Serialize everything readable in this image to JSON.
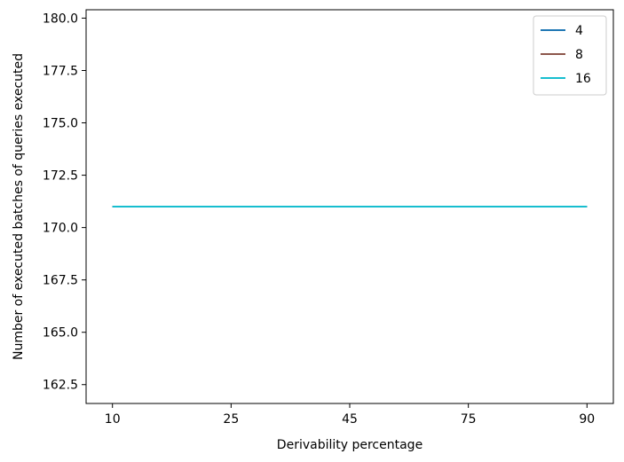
{
  "chart_data": {
    "type": "line",
    "title": "",
    "xlabel": "Derivability percentage",
    "ylabel": "Number of executed batches of queries executed",
    "categories": [
      "10",
      "25",
      "45",
      "75",
      "90"
    ],
    "ylim": [
      161.6,
      180.4
    ],
    "yticks": [
      162.5,
      165.0,
      167.5,
      170.0,
      172.5,
      175.0,
      177.5,
      180.0
    ],
    "ytick_labels": [
      "162.5",
      "165.0",
      "167.5",
      "170.0",
      "172.5",
      "175.0",
      "177.5",
      "180.0"
    ],
    "grid": false,
    "legend_position": "top-right",
    "series": [
      {
        "name": "4",
        "color": "#1f77b4",
        "values": [
          171,
          171,
          171,
          171,
          171
        ]
      },
      {
        "name": "8",
        "color": "#8c564b",
        "values": [
          171,
          171,
          171,
          171,
          171
        ]
      },
      {
        "name": "16",
        "color": "#17becf",
        "values": [
          171,
          171,
          171,
          171,
          171
        ]
      }
    ]
  }
}
